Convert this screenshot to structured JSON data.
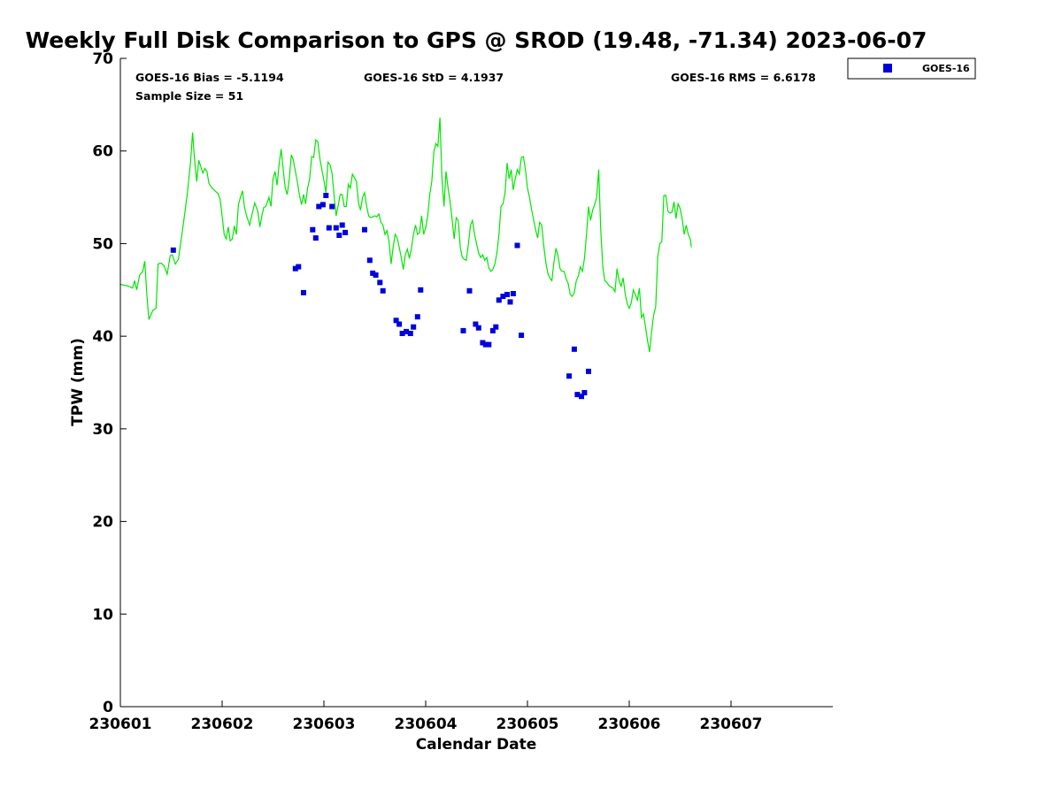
{
  "chart_data": {
    "type": "scatter",
    "title": "Weekly Full Disk Comparison to GPS @ SROD (19.48, -71.34) 2023-06-07",
    "xlabel": "Calendar Date",
    "ylabel": "TPW (mm)",
    "xlim": [
      0,
      7
    ],
    "ylim": [
      0,
      70
    ],
    "x_ticks": [
      {
        "value": 0,
        "label": "230601"
      },
      {
        "value": 1,
        "label": "230602"
      },
      {
        "value": 2,
        "label": "230603"
      },
      {
        "value": 3,
        "label": "230604"
      },
      {
        "value": 4,
        "label": "230605"
      },
      {
        "value": 5,
        "label": "230606"
      },
      {
        "value": 6,
        "label": "230607"
      }
    ],
    "y_ticks": [
      0,
      10,
      20,
      30,
      40,
      50,
      60,
      70
    ],
    "stats": {
      "bias": "GOES-16 Bias = -5.1194",
      "std": "GOES-16 StD = 4.1937",
      "rms": "GOES-16 RMS = 6.6178",
      "sample": "Sample Size = 51"
    },
    "legend": {
      "label": "GOES-16",
      "color": "#0000dd",
      "position": "outside-top-right"
    },
    "gps_line_color": "#00e600",
    "gps_line": [
      [
        0.0,
        45.6
      ],
      [
        0.08,
        45.4
      ],
      [
        0.12,
        45.2
      ],
      [
        0.14,
        46.0
      ],
      [
        0.16,
        45.0
      ],
      [
        0.19,
        46.6
      ],
      [
        0.22,
        47.0
      ],
      [
        0.24,
        48.1
      ],
      [
        0.26,
        44.5
      ],
      [
        0.28,
        41.8
      ],
      [
        0.3,
        42.3
      ],
      [
        0.32,
        42.8
      ],
      [
        0.35,
        43.0
      ],
      [
        0.37,
        47.8
      ],
      [
        0.4,
        47.9
      ],
      [
        0.43,
        47.6
      ],
      [
        0.46,
        46.7
      ],
      [
        0.49,
        48.7
      ],
      [
        0.51,
        48.8
      ],
      [
        0.54,
        47.8
      ],
      [
        0.57,
        48.3
      ],
      [
        0.6,
        50.6
      ],
      [
        0.63,
        53.0
      ],
      [
        0.66,
        55.6
      ],
      [
        0.69,
        58.8
      ],
      [
        0.71,
        62.0
      ],
      [
        0.73,
        59.0
      ],
      [
        0.75,
        56.7
      ],
      [
        0.77,
        59.0
      ],
      [
        0.79,
        58.3
      ],
      [
        0.81,
        57.6
      ],
      [
        0.83,
        58.1
      ],
      [
        0.85,
        57.8
      ],
      [
        0.87,
        56.5
      ],
      [
        0.9,
        56.0
      ],
      [
        0.93,
        55.7
      ],
      [
        0.96,
        55.4
      ],
      [
        0.98,
        54.8
      ],
      [
        1.0,
        53.0
      ],
      [
        1.02,
        51.0
      ],
      [
        1.04,
        50.5
      ],
      [
        1.06,
        51.8
      ],
      [
        1.08,
        50.3
      ],
      [
        1.1,
        50.5
      ],
      [
        1.12,
        51.9
      ],
      [
        1.14,
        51.0
      ],
      [
        1.16,
        54.2
      ],
      [
        1.18,
        55.0
      ],
      [
        1.2,
        55.7
      ],
      [
        1.22,
        53.9
      ],
      [
        1.24,
        53.0
      ],
      [
        1.27,
        52.0
      ],
      [
        1.29,
        53.0
      ],
      [
        1.32,
        54.4
      ],
      [
        1.35,
        53.5
      ],
      [
        1.37,
        51.8
      ],
      [
        1.39,
        53.0
      ],
      [
        1.41,
        53.9
      ],
      [
        1.43,
        54.0
      ],
      [
        1.46,
        55.0
      ],
      [
        1.48,
        54.0
      ],
      [
        1.5,
        57.0
      ],
      [
        1.52,
        57.8
      ],
      [
        1.54,
        56.3
      ],
      [
        1.56,
        58.6
      ],
      [
        1.58,
        60.2
      ],
      [
        1.6,
        58.0
      ],
      [
        1.62,
        56.0
      ],
      [
        1.64,
        55.3
      ],
      [
        1.66,
        57.0
      ],
      [
        1.68,
        59.6
      ],
      [
        1.7,
        59.0
      ],
      [
        1.72,
        57.8
      ],
      [
        1.74,
        56.6
      ],
      [
        1.76,
        55.2
      ],
      [
        1.78,
        54.2
      ],
      [
        1.8,
        55.3
      ],
      [
        1.82,
        54.3
      ],
      [
        1.84,
        56.0
      ],
      [
        1.86,
        57.0
      ],
      [
        1.88,
        59.4
      ],
      [
        1.9,
        59.3
      ],
      [
        1.92,
        61.2
      ],
      [
        1.94,
        61.0
      ],
      [
        1.96,
        59.2
      ],
      [
        1.98,
        58.0
      ],
      [
        2.0,
        56.8
      ],
      [
        2.02,
        55.5
      ],
      [
        2.04,
        58.8
      ],
      [
        2.06,
        58.5
      ],
      [
        2.08,
        57.6
      ],
      [
        2.1,
        55.2
      ],
      [
        2.12,
        53.0
      ],
      [
        2.14,
        54.1
      ],
      [
        2.16,
        55.3
      ],
      [
        2.18,
        55.3
      ],
      [
        2.2,
        54.0
      ],
      [
        2.22,
        54.0
      ],
      [
        2.24,
        56.4
      ],
      [
        2.26,
        56.0
      ],
      [
        2.28,
        57.5
      ],
      [
        2.3,
        57.1
      ],
      [
        2.32,
        56.7
      ],
      [
        2.34,
        54.4
      ],
      [
        2.36,
        53.6
      ],
      [
        2.38,
        55.0
      ],
      [
        2.4,
        55.5
      ],
      [
        2.42,
        54.0
      ],
      [
        2.44,
        53.0
      ],
      [
        2.46,
        52.8
      ],
      [
        2.48,
        52.9
      ],
      [
        2.5,
        53.0
      ],
      [
        2.52,
        52.9
      ],
      [
        2.54,
        53.2
      ],
      [
        2.56,
        52.3
      ],
      [
        2.58,
        52.0
      ],
      [
        2.6,
        51.0
      ],
      [
        2.62,
        51.4
      ],
      [
        2.64,
        50.2
      ],
      [
        2.66,
        47.8
      ],
      [
        2.68,
        49.6
      ],
      [
        2.7,
        51.0
      ],
      [
        2.72,
        50.6
      ],
      [
        2.74,
        49.6
      ],
      [
        2.76,
        48.5
      ],
      [
        2.78,
        47.2
      ],
      [
        2.8,
        48.8
      ],
      [
        2.82,
        49.4
      ],
      [
        2.84,
        48.4
      ],
      [
        2.86,
        49.5
      ],
      [
        2.88,
        51.0
      ],
      [
        2.9,
        52.0
      ],
      [
        2.92,
        51.0
      ],
      [
        2.94,
        51.2
      ],
      [
        2.96,
        53.0
      ],
      [
        2.98,
        51.0
      ],
      [
        3.0,
        51.7
      ],
      [
        3.02,
        53.0
      ],
      [
        3.04,
        55.3
      ],
      [
        3.06,
        56.7
      ],
      [
        3.08,
        59.9
      ],
      [
        3.1,
        60.8
      ],
      [
        3.12,
        60.5
      ],
      [
        3.14,
        63.6
      ],
      [
        3.16,
        57.0
      ],
      [
        3.18,
        54.0
      ],
      [
        3.2,
        57.8
      ],
      [
        3.22,
        56.0
      ],
      [
        3.24,
        54.5
      ],
      [
        3.26,
        52.6
      ],
      [
        3.28,
        50.5
      ],
      [
        3.3,
        52.8
      ],
      [
        3.32,
        52.5
      ],
      [
        3.34,
        49.6
      ],
      [
        3.36,
        48.5
      ],
      [
        3.38,
        48.3
      ],
      [
        3.4,
        48.2
      ],
      [
        3.42,
        50.0
      ],
      [
        3.44,
        52.0
      ],
      [
        3.46,
        52.5
      ],
      [
        3.48,
        51.0
      ],
      [
        3.5,
        50.0
      ],
      [
        3.52,
        49.0
      ],
      [
        3.54,
        48.5
      ],
      [
        3.56,
        48.8
      ],
      [
        3.58,
        48.2
      ],
      [
        3.6,
        48.5
      ],
      [
        3.62,
        47.4
      ],
      [
        3.64,
        47.0
      ],
      [
        3.66,
        47.2
      ],
      [
        3.68,
        47.8
      ],
      [
        3.7,
        49.0
      ],
      [
        3.72,
        51.0
      ],
      [
        3.74,
        54.0
      ],
      [
        3.76,
        54.3
      ],
      [
        3.78,
        55.5
      ],
      [
        3.8,
        58.7
      ],
      [
        3.82,
        57.0
      ],
      [
        3.84,
        58.0
      ],
      [
        3.86,
        55.8
      ],
      [
        3.88,
        57.0
      ],
      [
        3.9,
        58.0
      ],
      [
        3.92,
        57.5
      ],
      [
        3.94,
        59.3
      ],
      [
        3.96,
        59.4
      ],
      [
        3.98,
        58.0
      ],
      [
        4.0,
        56.0
      ],
      [
        4.02,
        55.0
      ],
      [
        4.04,
        53.7
      ],
      [
        4.06,
        52.6
      ],
      [
        4.08,
        51.5
      ],
      [
        4.1,
        50.6
      ],
      [
        4.12,
        52.3
      ],
      [
        4.14,
        52.0
      ],
      [
        4.16,
        49.8
      ],
      [
        4.18,
        48.0
      ],
      [
        4.2,
        46.8
      ],
      [
        4.22,
        46.3
      ],
      [
        4.24,
        46.0
      ],
      [
        4.26,
        48.0
      ],
      [
        4.28,
        49.5
      ],
      [
        4.3,
        48.7
      ],
      [
        4.32,
        47.3
      ],
      [
        4.34,
        47.0
      ],
      [
        4.36,
        47.0
      ],
      [
        4.38,
        46.2
      ],
      [
        4.4,
        45.7
      ],
      [
        4.42,
        44.5
      ],
      [
        4.44,
        44.3
      ],
      [
        4.46,
        44.7
      ],
      [
        4.48,
        46.0
      ],
      [
        4.5,
        46.5
      ],
      [
        4.52,
        47.5
      ],
      [
        4.54,
        47.0
      ],
      [
        4.56,
        48.4
      ],
      [
        4.58,
        51.0
      ],
      [
        4.6,
        54.0
      ],
      [
        4.62,
        52.5
      ],
      [
        4.64,
        53.6
      ],
      [
        4.66,
        54.2
      ],
      [
        4.68,
        55.0
      ],
      [
        4.7,
        58.0
      ],
      [
        4.72,
        51.5
      ],
      [
        4.74,
        47.5
      ],
      [
        4.76,
        46.0
      ],
      [
        4.78,
        45.8
      ],
      [
        4.8,
        45.5
      ],
      [
        4.82,
        45.3
      ],
      [
        4.84,
        45.2
      ],
      [
        4.86,
        44.8
      ],
      [
        4.88,
        47.3
      ],
      [
        4.9,
        46.0
      ],
      [
        4.92,
        45.4
      ],
      [
        4.94,
        46.3
      ],
      [
        4.96,
        44.6
      ],
      [
        4.98,
        43.5
      ],
      [
        5.0,
        43.0
      ],
      [
        5.02,
        43.6
      ],
      [
        5.04,
        45.0
      ],
      [
        5.06,
        44.5
      ],
      [
        5.08,
        43.9
      ],
      [
        5.1,
        45.2
      ],
      [
        5.12,
        42.0
      ],
      [
        5.14,
        42.4
      ],
      [
        5.16,
        41.0
      ],
      [
        5.18,
        39.5
      ],
      [
        5.2,
        38.3
      ],
      [
        5.22,
        40.5
      ],
      [
        5.24,
        42.3
      ],
      [
        5.26,
        43.2
      ],
      [
        5.28,
        48.5
      ],
      [
        5.3,
        50.0
      ],
      [
        5.32,
        50.2
      ],
      [
        5.34,
        55.2
      ],
      [
        5.36,
        55.2
      ],
      [
        5.38,
        53.5
      ],
      [
        5.4,
        53.3
      ],
      [
        5.42,
        53.4
      ],
      [
        5.44,
        54.5
      ],
      [
        5.46,
        52.7
      ],
      [
        5.48,
        54.3
      ],
      [
        5.5,
        53.8
      ],
      [
        5.52,
        52.7
      ],
      [
        5.54,
        51.0
      ],
      [
        5.56,
        52.0
      ],
      [
        5.58,
        51.0
      ],
      [
        5.6,
        50.5
      ],
      [
        5.61,
        49.6
      ]
    ],
    "series": [
      {
        "name": "GOES-16",
        "points": [
          [
            0.52,
            49.3
          ],
          [
            1.72,
            47.3
          ],
          [
            1.75,
            47.5
          ],
          [
            1.8,
            44.7
          ],
          [
            1.89,
            51.5
          ],
          [
            1.92,
            50.6
          ],
          [
            1.95,
            54.0
          ],
          [
            1.99,
            54.2
          ],
          [
            2.02,
            55.2
          ],
          [
            2.05,
            51.7
          ],
          [
            2.08,
            54.0
          ],
          [
            2.12,
            51.7
          ],
          [
            2.15,
            50.9
          ],
          [
            2.18,
            52.0
          ],
          [
            2.21,
            51.2
          ],
          [
            2.4,
            51.5
          ],
          [
            2.45,
            48.2
          ],
          [
            2.48,
            46.8
          ],
          [
            2.51,
            46.6
          ],
          [
            2.55,
            45.8
          ],
          [
            2.58,
            44.9
          ],
          [
            2.71,
            41.7
          ],
          [
            2.74,
            41.3
          ],
          [
            2.77,
            40.3
          ],
          [
            2.81,
            40.5
          ],
          [
            2.85,
            40.3
          ],
          [
            2.88,
            41.0
          ],
          [
            2.92,
            42.1
          ],
          [
            2.95,
            45.0
          ],
          [
            3.37,
            40.6
          ],
          [
            3.43,
            44.9
          ],
          [
            3.49,
            41.3
          ],
          [
            3.52,
            40.9
          ],
          [
            3.56,
            39.3
          ],
          [
            3.59,
            39.1
          ],
          [
            3.62,
            39.1
          ],
          [
            3.66,
            40.6
          ],
          [
            3.69,
            41.0
          ],
          [
            3.72,
            43.9
          ],
          [
            3.76,
            44.3
          ],
          [
            3.8,
            44.5
          ],
          [
            3.83,
            43.7
          ],
          [
            3.86,
            44.6
          ],
          [
            3.9,
            49.8
          ],
          [
            3.94,
            40.1
          ],
          [
            4.41,
            35.7
          ],
          [
            4.46,
            38.6
          ],
          [
            4.49,
            33.7
          ],
          [
            4.53,
            33.5
          ],
          [
            4.56,
            33.9
          ],
          [
            4.6,
            36.2
          ]
        ]
      }
    ]
  }
}
